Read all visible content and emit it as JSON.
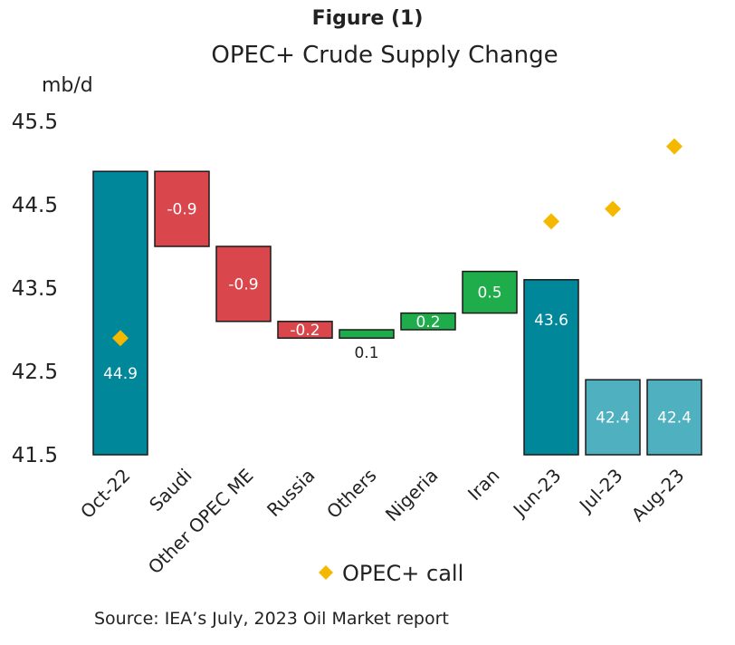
{
  "figure_label": "Figure (1)",
  "source": "Source: IEA’s July, 2023 Oil Market report",
  "colors": {
    "total": "#00879a",
    "total_light": "#4fb0c0",
    "decrease": "#d9474d",
    "increase": "#1fad4b",
    "marker": "#f5b800"
  },
  "chart_data": {
    "type": "waterfall",
    "title": "OPEC+ Crude Supply Change",
    "ylabel": "mb/d",
    "ylim": [
      41.5,
      45.5
    ],
    "yticks": [
      "41.5",
      "42.5",
      "43.5",
      "44.5",
      "45.5"
    ],
    "grid": false,
    "legend_position": "bottom",
    "categories": [
      "Oct-22",
      "Saudi",
      "Other OPEC ME",
      "Russia",
      "Others",
      "Nigeria",
      "Iran",
      "Jun-23",
      "Jul-23",
      "Aug-23"
    ],
    "bars": [
      {
        "category": "Oct-22",
        "kind": "total",
        "value": 44.9,
        "label": "44.9"
      },
      {
        "category": "Saudi",
        "kind": "decrease",
        "value": -0.9,
        "label": "-0.9"
      },
      {
        "category": "Other OPEC ME",
        "kind": "decrease",
        "value": -0.9,
        "label": "-0.9"
      },
      {
        "category": "Russia",
        "kind": "decrease",
        "value": -0.2,
        "label": "-0.2"
      },
      {
        "category": "Others",
        "kind": "increase",
        "value": 0.1,
        "label": "0.1"
      },
      {
        "category": "Nigeria",
        "kind": "increase",
        "value": 0.2,
        "label": "0.2"
      },
      {
        "category": "Iran",
        "kind": "increase",
        "value": 0.5,
        "label": "0.5"
      },
      {
        "category": "Jun-23",
        "kind": "total",
        "value": 43.6,
        "label": "43.6"
      },
      {
        "category": "Jul-23",
        "kind": "total_light",
        "value": 42.4,
        "label": "42.4"
      },
      {
        "category": "Aug-23",
        "kind": "total_light",
        "value": 42.4,
        "label": "42.4"
      }
    ],
    "series": [
      {
        "name": "OPEC+ call",
        "type": "scatter",
        "points": [
          {
            "category": "Oct-22",
            "value": 42.9
          },
          {
            "category": "Jun-23",
            "value": 44.3
          },
          {
            "category": "Jul-23",
            "value": 44.45
          },
          {
            "category": "Aug-23",
            "value": 45.2
          }
        ]
      }
    ]
  }
}
